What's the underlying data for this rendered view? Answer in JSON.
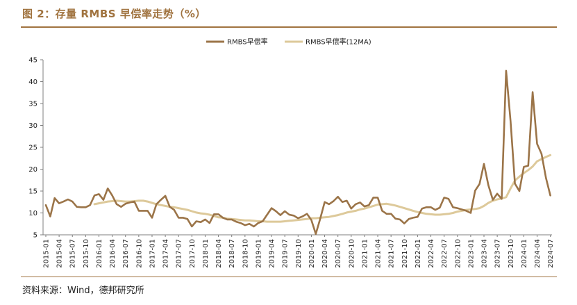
{
  "header": {
    "title": "图 2：存量 RMBS 早偿率走势（%）"
  },
  "footer": {
    "source": "资料来源：Wind，德邦研究所"
  },
  "chart_data": {
    "type": "line",
    "legend_position": "top-center",
    "grid": false,
    "ylim": [
      5,
      45
    ],
    "yticks": [
      5,
      10,
      15,
      20,
      25,
      30,
      35,
      40,
      45
    ],
    "xtick_labels": [
      "2015-01",
      "2015-04",
      "2015-07",
      "2015-10",
      "2016-01",
      "2016-04",
      "2016-07",
      "2016-10",
      "2017-01",
      "2017-04",
      "2017-07",
      "2017-10",
      "2018-01",
      "2018-04",
      "2018-07",
      "2018-10",
      "2019-01",
      "2019-04",
      "2019-07",
      "2019-10",
      "2020-01",
      "2020-04",
      "2020-07",
      "2020-10",
      "2021-01",
      "2021-04",
      "2021-07",
      "2021-10",
      "2022-01",
      "2022-04",
      "2022-07",
      "2022-10",
      "2023-01",
      "2023-04",
      "2023-07",
      "2023-10",
      "2024-01",
      "2024-04",
      "2024-07"
    ],
    "x": [
      "2015-01",
      "2015-02",
      "2015-03",
      "2015-04",
      "2015-05",
      "2015-06",
      "2015-07",
      "2015-08",
      "2015-09",
      "2015-10",
      "2015-11",
      "2015-12",
      "2016-01",
      "2016-02",
      "2016-03",
      "2016-04",
      "2016-05",
      "2016-06",
      "2016-07",
      "2016-08",
      "2016-09",
      "2016-10",
      "2016-11",
      "2016-12",
      "2017-01",
      "2017-02",
      "2017-03",
      "2017-04",
      "2017-05",
      "2017-06",
      "2017-07",
      "2017-08",
      "2017-09",
      "2017-10",
      "2017-11",
      "2017-12",
      "2018-01",
      "2018-02",
      "2018-03",
      "2018-04",
      "2018-05",
      "2018-06",
      "2018-07",
      "2018-08",
      "2018-09",
      "2018-10",
      "2018-11",
      "2018-12",
      "2019-01",
      "2019-02",
      "2019-03",
      "2019-04",
      "2019-05",
      "2019-06",
      "2019-07",
      "2019-08",
      "2019-09",
      "2019-10",
      "2019-11",
      "2019-12",
      "2020-01",
      "2020-02",
      "2020-03",
      "2020-04",
      "2020-05",
      "2020-06",
      "2020-07",
      "2020-08",
      "2020-09",
      "2020-10",
      "2020-11",
      "2020-12",
      "2021-01",
      "2021-02",
      "2021-03",
      "2021-04",
      "2021-05",
      "2021-06",
      "2021-07",
      "2021-08",
      "2021-09",
      "2021-10",
      "2021-11",
      "2021-12",
      "2022-01",
      "2022-02",
      "2022-03",
      "2022-04",
      "2022-05",
      "2022-06",
      "2022-07",
      "2022-08",
      "2022-09",
      "2022-10",
      "2022-11",
      "2022-12",
      "2023-01",
      "2023-02",
      "2023-03",
      "2023-04",
      "2023-05",
      "2023-06",
      "2023-07",
      "2023-08",
      "2023-09",
      "2023-10",
      "2023-11",
      "2023-12",
      "2024-01",
      "2024-02",
      "2024-03",
      "2024-04",
      "2024-05",
      "2024-06",
      "2024-07"
    ],
    "series": [
      {
        "name": "RMBS早偿率",
        "color": "#9b7448",
        "values": [
          11.8,
          9.2,
          13.4,
          12.2,
          12.6,
          13.1,
          12.6,
          11.4,
          11.3,
          11.3,
          11.8,
          14.0,
          14.3,
          13.0,
          15.6,
          14.0,
          12.0,
          11.4,
          12.1,
          12.4,
          12.6,
          10.5,
          10.5,
          10.5,
          8.9,
          12.0,
          13.0,
          13.9,
          11.4,
          10.7,
          8.9,
          8.9,
          8.6,
          6.9,
          8.1,
          7.9,
          8.5,
          7.7,
          9.7,
          9.7,
          8.9,
          8.5,
          8.5,
          8.0,
          7.7,
          7.2,
          7.5,
          6.9,
          7.7,
          8.1,
          9.6,
          11.1,
          10.4,
          9.5,
          10.4,
          9.6,
          9.4,
          8.8,
          9.2,
          9.8,
          8.4,
          5.2,
          8.7,
          12.5,
          12.0,
          12.7,
          13.7,
          12.5,
          12.8,
          11.0,
          12.0,
          12.4,
          11.5,
          11.8,
          13.5,
          13.5,
          10.5,
          9.8,
          9.8,
          8.7,
          8.5,
          7.6,
          8.6,
          8.9,
          9.1,
          11.0,
          11.3,
          11.3,
          10.7,
          11.2,
          13.5,
          13.2,
          11.3,
          11.1,
          10.8,
          10.5,
          10.0,
          15.1,
          16.6,
          21.2,
          16.3,
          13.0,
          14.4,
          13.2,
          42.5,
          31.0,
          16.7,
          15.0,
          20.5,
          20.8,
          37.6,
          25.8,
          23.5,
          18.0,
          14.0
        ]
      },
      {
        "name": "RMBS早偿率(12MA)",
        "color": "#ddc99a",
        "values": [
          null,
          null,
          null,
          null,
          null,
          null,
          null,
          null,
          null,
          null,
          null,
          12.0,
          12.2,
          12.4,
          12.6,
          12.7,
          12.8,
          12.7,
          12.6,
          12.6,
          12.7,
          12.8,
          12.8,
          12.6,
          12.3,
          12.0,
          11.8,
          11.6,
          11.4,
          11.3,
          11.1,
          10.9,
          10.7,
          10.4,
          10.1,
          9.9,
          9.8,
          9.6,
          9.3,
          9.0,
          8.9,
          8.7,
          8.6,
          8.5,
          8.4,
          8.3,
          8.3,
          8.2,
          8.1,
          8.1,
          8.0,
          8.0,
          8.0,
          8.0,
          8.1,
          8.2,
          8.3,
          8.4,
          8.5,
          8.6,
          8.8,
          8.8,
          8.9,
          9.0,
          9.1,
          9.3,
          9.5,
          9.8,
          10.1,
          10.3,
          10.5,
          10.8,
          11.0,
          11.3,
          11.6,
          11.9,
          12.0,
          12.1,
          11.9,
          11.7,
          11.4,
          11.1,
          10.8,
          10.5,
          10.2,
          10.0,
          9.8,
          9.7,
          9.6,
          9.6,
          9.7,
          9.8,
          10.0,
          10.3,
          10.5,
          10.7,
          10.8,
          10.9,
          11.1,
          11.6,
          12.3,
          12.8,
          13.1,
          13.3,
          13.6,
          15.6,
          17.4,
          18.3,
          19.1,
          19.8,
          20.6,
          21.8,
          22.3,
          22.8,
          23.2
        ]
      }
    ]
  }
}
